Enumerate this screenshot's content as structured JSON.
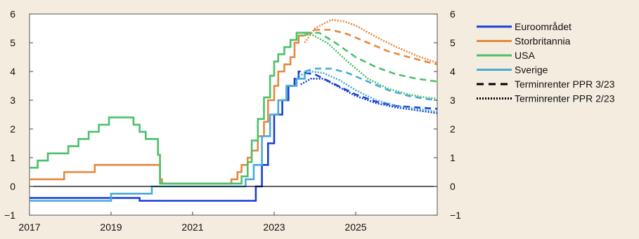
{
  "colors": {
    "background": "#f4ecde",
    "plot_background": "#ffffff",
    "Euroområdet": "#1a3fd6",
    "Storbritannia": "#e6883d",
    "USA": "#4cc06a",
    "Sverige": "#4aaad6"
  },
  "chart_data": {
    "type": "line",
    "title": "",
    "xlabel": "",
    "ylabel": "",
    "xlim": [
      2017.0,
      2027.0
    ],
    "ylim": [
      -1,
      6
    ],
    "x_ticks": [
      "2017",
      "2019",
      "2021",
      "2023",
      "2025"
    ],
    "x_tick_values": [
      2017,
      2019,
      2021,
      2023,
      2025
    ],
    "y_ticks_left": [
      "−1",
      "0",
      "1",
      "2",
      "3",
      "4",
      "5",
      "6"
    ],
    "y_ticks_right": [
      "−1",
      "0",
      "1",
      "2",
      "3",
      "4",
      "5",
      "6"
    ],
    "y_tick_values": [
      -1,
      0,
      1,
      2,
      3,
      4,
      5,
      6
    ],
    "grid": false,
    "legend_position": "right",
    "legend": [
      {
        "label": "Euroområdet",
        "style": "solid",
        "color": "#1a3fd6"
      },
      {
        "label": "Storbritannia",
        "style": "solid",
        "color": "#e6883d"
      },
      {
        "label": "USA",
        "style": "solid",
        "color": "#4cc06a"
      },
      {
        "label": "Sverige",
        "style": "solid",
        "color": "#4aaad6"
      },
      {
        "label": "Terminrenter PPR 3/23",
        "style": "dashed",
        "color": "#000000"
      },
      {
        "label": "Terminrenter PPR 2/23",
        "style": "dotted",
        "color": "#000000"
      }
    ],
    "series": [
      {
        "name": "Euroområdet",
        "kind": "history",
        "style": "solid",
        "step": true,
        "color": "#1a3fd6",
        "points": [
          [
            2017.0,
            -0.4
          ],
          [
            2019.7,
            -0.5
          ],
          [
            2022.55,
            0.0
          ],
          [
            2022.7,
            0.75
          ],
          [
            2022.85,
            1.5
          ],
          [
            2023.0,
            2.5
          ],
          [
            2023.2,
            3.0
          ],
          [
            2023.35,
            3.5
          ],
          [
            2023.5,
            3.75
          ],
          [
            2023.6,
            4.0
          ],
          [
            2023.65,
            4.0
          ]
        ]
      },
      {
        "name": "Storbritannia",
        "kind": "history",
        "style": "solid",
        "step": true,
        "color": "#e6883d",
        "points": [
          [
            2017.0,
            0.25
          ],
          [
            2017.85,
            0.5
          ],
          [
            2018.6,
            0.75
          ],
          [
            2020.2,
            0.25
          ],
          [
            2020.25,
            0.1
          ],
          [
            2021.95,
            0.25
          ],
          [
            2022.1,
            0.5
          ],
          [
            2022.2,
            0.75
          ],
          [
            2022.35,
            1.0
          ],
          [
            2022.45,
            1.25
          ],
          [
            2022.6,
            1.75
          ],
          [
            2022.75,
            2.25
          ],
          [
            2022.85,
            3.0
          ],
          [
            2023.0,
            3.5
          ],
          [
            2023.1,
            4.0
          ],
          [
            2023.25,
            4.25
          ],
          [
            2023.4,
            4.5
          ],
          [
            2023.5,
            5.0
          ],
          [
            2023.6,
            5.25
          ],
          [
            2023.75,
            5.25
          ]
        ]
      },
      {
        "name": "USA",
        "kind": "history",
        "style": "solid",
        "step": true,
        "color": "#4cc06a",
        "points": [
          [
            2017.0,
            0.65
          ],
          [
            2017.2,
            0.9
          ],
          [
            2017.45,
            1.15
          ],
          [
            2017.95,
            1.4
          ],
          [
            2018.2,
            1.65
          ],
          [
            2018.45,
            1.9
          ],
          [
            2018.7,
            2.15
          ],
          [
            2018.95,
            2.4
          ],
          [
            2019.55,
            2.15
          ],
          [
            2019.7,
            1.9
          ],
          [
            2019.85,
            1.65
          ],
          [
            2020.15,
            1.1
          ],
          [
            2020.2,
            0.1
          ],
          [
            2022.2,
            0.35
          ],
          [
            2022.35,
            0.85
          ],
          [
            2022.45,
            1.6
          ],
          [
            2022.6,
            2.35
          ],
          [
            2022.75,
            3.1
          ],
          [
            2022.9,
            3.85
          ],
          [
            2023.0,
            4.35
          ],
          [
            2023.1,
            4.6
          ],
          [
            2023.25,
            4.85
          ],
          [
            2023.4,
            5.1
          ],
          [
            2023.55,
            5.35
          ],
          [
            2023.75,
            5.35
          ]
        ]
      },
      {
        "name": "Sverige",
        "kind": "history",
        "style": "solid",
        "step": true,
        "color": "#4aaad6",
        "points": [
          [
            2017.0,
            -0.5
          ],
          [
            2019.0,
            -0.25
          ],
          [
            2020.0,
            0.0
          ],
          [
            2022.3,
            0.25
          ],
          [
            2022.5,
            0.75
          ],
          [
            2022.7,
            1.75
          ],
          [
            2022.9,
            2.5
          ],
          [
            2023.1,
            3.0
          ],
          [
            2023.3,
            3.5
          ],
          [
            2023.55,
            3.75
          ],
          [
            2023.75,
            4.0
          ]
        ]
      },
      {
        "name": "Euroområdet",
        "kind": "PPR 3/23",
        "style": "dashed",
        "color": "#1a3fd6",
        "points": [
          [
            2023.75,
            3.95
          ],
          [
            2024.0,
            3.9
          ],
          [
            2024.5,
            3.55
          ],
          [
            2025.0,
            3.2
          ],
          [
            2025.5,
            2.95
          ],
          [
            2026.0,
            2.8
          ],
          [
            2026.5,
            2.75
          ],
          [
            2027.0,
            2.7
          ]
        ]
      },
      {
        "name": "Euroområdet",
        "kind": "PPR 2/23",
        "style": "dotted",
        "color": "#1a3fd6",
        "points": [
          [
            2023.65,
            3.55
          ],
          [
            2023.9,
            3.75
          ],
          [
            2024.2,
            3.75
          ],
          [
            2024.6,
            3.45
          ],
          [
            2025.0,
            3.15
          ],
          [
            2025.5,
            2.9
          ],
          [
            2026.0,
            2.75
          ],
          [
            2026.5,
            2.65
          ],
          [
            2027.0,
            2.55
          ]
        ]
      },
      {
        "name": "Storbritannia",
        "kind": "PPR 3/23",
        "style": "dashed",
        "color": "#e6883d",
        "points": [
          [
            2023.75,
            5.25
          ],
          [
            2024.0,
            5.45
          ],
          [
            2024.4,
            5.45
          ],
          [
            2024.8,
            5.3
          ],
          [
            2025.3,
            5.0
          ],
          [
            2025.8,
            4.7
          ],
          [
            2026.3,
            4.5
          ],
          [
            2026.7,
            4.35
          ],
          [
            2027.0,
            4.25
          ]
        ]
      },
      {
        "name": "Storbritannia",
        "kind": "PPR 2/23",
        "style": "dotted",
        "color": "#e6883d",
        "points": [
          [
            2023.75,
            5.0
          ],
          [
            2024.0,
            5.5
          ],
          [
            2024.4,
            5.8
          ],
          [
            2024.7,
            5.75
          ],
          [
            2025.0,
            5.6
          ],
          [
            2025.5,
            5.2
          ],
          [
            2026.0,
            4.85
          ],
          [
            2026.5,
            4.55
          ],
          [
            2027.0,
            4.3
          ]
        ]
      },
      {
        "name": "USA",
        "kind": "PPR 3/23",
        "style": "dashed",
        "color": "#4cc06a",
        "points": [
          [
            2023.75,
            5.35
          ],
          [
            2024.1,
            5.35
          ],
          [
            2024.5,
            5.0
          ],
          [
            2025.0,
            4.5
          ],
          [
            2025.5,
            4.15
          ],
          [
            2026.0,
            3.9
          ],
          [
            2026.5,
            3.75
          ],
          [
            2027.0,
            3.65
          ]
        ]
      },
      {
        "name": "USA",
        "kind": "PPR 2/23",
        "style": "dotted",
        "color": "#4cc06a",
        "points": [
          [
            2023.6,
            5.25
          ],
          [
            2023.9,
            5.3
          ],
          [
            2024.3,
            5.0
          ],
          [
            2024.8,
            4.35
          ],
          [
            2025.3,
            3.75
          ],
          [
            2025.8,
            3.4
          ],
          [
            2026.3,
            3.2
          ],
          [
            2026.7,
            3.1
          ],
          [
            2027.0,
            3.05
          ]
        ]
      },
      {
        "name": "Sverige",
        "kind": "PPR 3/23",
        "style": "dashed",
        "color": "#4aaad6",
        "points": [
          [
            2023.75,
            4.0
          ],
          [
            2024.0,
            4.1
          ],
          [
            2024.4,
            4.1
          ],
          [
            2024.8,
            3.95
          ],
          [
            2025.3,
            3.65
          ],
          [
            2025.8,
            3.35
          ],
          [
            2026.3,
            3.15
          ],
          [
            2026.7,
            3.05
          ],
          [
            2027.0,
            3.0
          ]
        ]
      },
      {
        "name": "Sverige",
        "kind": "PPR 2/23",
        "style": "dotted",
        "color": "#4aaad6",
        "points": [
          [
            2023.6,
            3.85
          ],
          [
            2023.9,
            4.0
          ],
          [
            2024.2,
            3.95
          ],
          [
            2024.6,
            3.7
          ],
          [
            2025.0,
            3.35
          ],
          [
            2025.5,
            3.0
          ],
          [
            2026.0,
            2.8
          ],
          [
            2026.5,
            2.7
          ],
          [
            2027.0,
            2.6
          ]
        ]
      }
    ]
  }
}
